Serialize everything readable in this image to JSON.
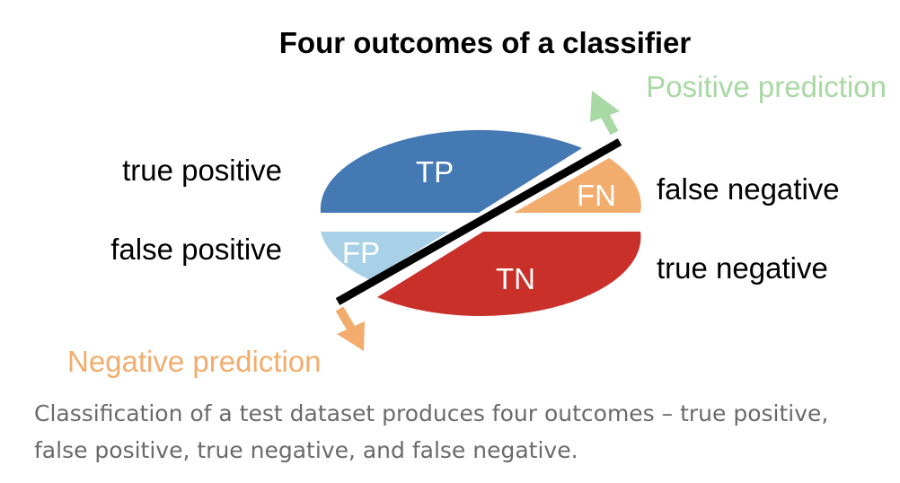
{
  "title": "Four outcomes of a classifier",
  "regions": {
    "tp": {
      "label": "TP",
      "color": "#4479b4"
    },
    "fn": {
      "label": "FN",
      "color": "#f2ac6d"
    },
    "fp": {
      "label": "FP",
      "color": "#a8d0e6"
    },
    "tn": {
      "label": "TN",
      "color": "#c9302a"
    }
  },
  "side_labels": {
    "true_positive": "true positive",
    "false_positive": "false positive",
    "false_negative": "false negative",
    "true_negative": "true negative"
  },
  "arrows": {
    "positive": {
      "label": "Positive prediction",
      "color": "#a8d8a3"
    },
    "negative": {
      "label": "Negative prediction",
      "color": "#f2ac6d"
    }
  },
  "caption": "Classification of a test dataset produces four outcomes – true positive, false positive, true negative, and false negative."
}
